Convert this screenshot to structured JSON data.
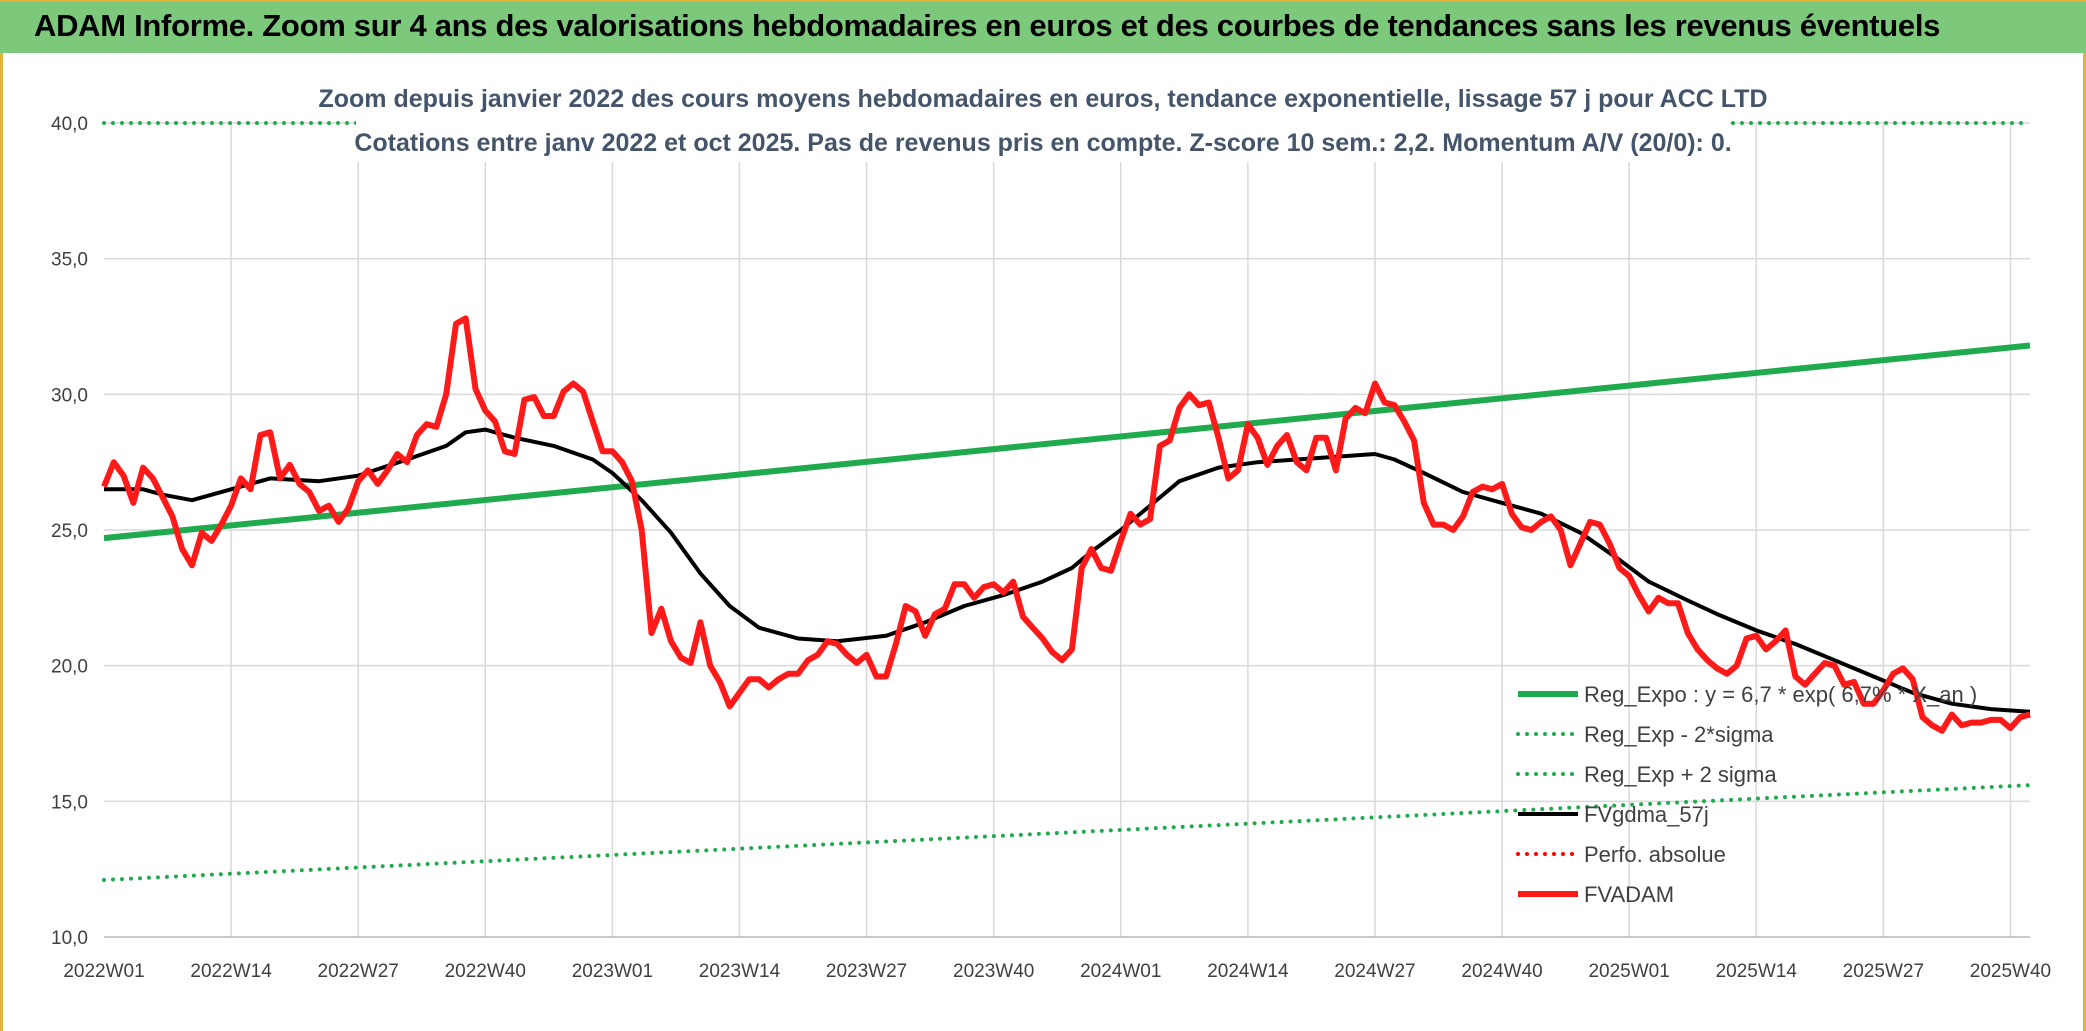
{
  "banner": {
    "title": "ADAM Informe. Zoom sur 4 ans des valorisations hebdomadaires en euros et des courbes de tendances sans les revenus éventuels"
  },
  "chart_data": {
    "type": "line",
    "title_lines": [
      "Zoom depuis janvier 2022 des cours moyens hebdomadaires en euros, tendance exponentielle, lissage 57 j pour ACC LTD",
      "Cotations entre janv 2022 et oct 2025. Pas de revenus pris en compte. Z-score 10 sem.: 2,2. Momentum A/V (20/0): 0."
    ],
    "ylim": [
      10,
      40
    ],
    "y_ticks": [
      10,
      15,
      20,
      25,
      30,
      35,
      40
    ],
    "y_tick_labels": [
      "10,0",
      "15,0",
      "20,0",
      "25,0",
      "30,0",
      "35,0",
      "40,0"
    ],
    "x_range": [
      0,
      197
    ],
    "x_ticks": [
      {
        "x": 0,
        "label": "2022W01"
      },
      {
        "x": 13,
        "label": "2022W14"
      },
      {
        "x": 26,
        "label": "2022W27"
      },
      {
        "x": 39,
        "label": "2022W40"
      },
      {
        "x": 52,
        "label": "2023W01"
      },
      {
        "x": 65,
        "label": "2023W14"
      },
      {
        "x": 78,
        "label": "2023W27"
      },
      {
        "x": 91,
        "label": "2023W40"
      },
      {
        "x": 104,
        "label": "2024W01"
      },
      {
        "x": 117,
        "label": "2024W14"
      },
      {
        "x": 130,
        "label": "2024W27"
      },
      {
        "x": 143,
        "label": "2024W40"
      },
      {
        "x": 156,
        "label": "2025W01"
      },
      {
        "x": 169,
        "label": "2025W14"
      },
      {
        "x": 182,
        "label": "2025W27"
      },
      {
        "x": 195,
        "label": "2025W40"
      }
    ],
    "grid": true,
    "legend_position": "bottom-right",
    "series": [
      {
        "name": "Reg_Expo : y = 6,7 * exp( 6,7% * X_an )",
        "color": "#1faa4d",
        "style": "solid",
        "width": 6,
        "points": [
          [
            0,
            24.7
          ],
          [
            197,
            31.8
          ]
        ]
      },
      {
        "name": "Reg_Exp - 2*sigma",
        "color": "#1faa4d",
        "style": "dotted",
        "width": 4,
        "points": [
          [
            0,
            12.1
          ],
          [
            197,
            15.6
          ]
        ]
      },
      {
        "name": "Reg_Exp + 2 sigma",
        "color": "#1faa4d",
        "style": "dotted",
        "width": 4,
        "points": [
          [
            0,
            40.0
          ],
          [
            197,
            40.0
          ]
        ]
      },
      {
        "name": "FVgdma_57j",
        "color": "#000000",
        "style": "solid",
        "width": 4,
        "points": [
          [
            0,
            26.5
          ],
          [
            4,
            26.5
          ],
          [
            6,
            26.3
          ],
          [
            9,
            26.1
          ],
          [
            13,
            26.5
          ],
          [
            17,
            26.9
          ],
          [
            22,
            26.8
          ],
          [
            26,
            27.0
          ],
          [
            31,
            27.6
          ],
          [
            35,
            28.1
          ],
          [
            37,
            28.6
          ],
          [
            39,
            28.7
          ],
          [
            42,
            28.4
          ],
          [
            46,
            28.1
          ],
          [
            50,
            27.6
          ],
          [
            52,
            27.1
          ],
          [
            55,
            26.1
          ],
          [
            58,
            24.9
          ],
          [
            61,
            23.4
          ],
          [
            64,
            22.2
          ],
          [
            67,
            21.4
          ],
          [
            71,
            21.0
          ],
          [
            75,
            20.9
          ],
          [
            80,
            21.1
          ],
          [
            84,
            21.6
          ],
          [
            88,
            22.2
          ],
          [
            92,
            22.6
          ],
          [
            96,
            23.1
          ],
          [
            99,
            23.6
          ],
          [
            101,
            24.2
          ],
          [
            104,
            25.0
          ],
          [
            107,
            25.9
          ],
          [
            110,
            26.8
          ],
          [
            114,
            27.3
          ],
          [
            118,
            27.5
          ],
          [
            122,
            27.6
          ],
          [
            126,
            27.7
          ],
          [
            130,
            27.8
          ],
          [
            132,
            27.6
          ],
          [
            135,
            27.1
          ],
          [
            139,
            26.4
          ],
          [
            143,
            26.0
          ],
          [
            147,
            25.6
          ],
          [
            151,
            24.9
          ],
          [
            155,
            23.9
          ],
          [
            158,
            23.1
          ],
          [
            162,
            22.4
          ],
          [
            165,
            21.9
          ],
          [
            169,
            21.3
          ],
          [
            173,
            20.8
          ],
          [
            177,
            20.2
          ],
          [
            181,
            19.6
          ],
          [
            185,
            19.0
          ],
          [
            189,
            18.6
          ],
          [
            193,
            18.4
          ],
          [
            197,
            18.3
          ]
        ]
      },
      {
        "name": "Perfo. absolue",
        "color": "#ff0000",
        "style": "dotted",
        "width": 4,
        "points": []
      },
      {
        "name": "FVADAM",
        "color": "#ff1a1a",
        "style": "solid",
        "width": 6,
        "points": [
          [
            0,
            26.6
          ],
          [
            1,
            27.5
          ],
          [
            2,
            27.0
          ],
          [
            3,
            26.0
          ],
          [
            4,
            27.3
          ],
          [
            5,
            26.9
          ],
          [
            6,
            26.2
          ],
          [
            7,
            25.5
          ],
          [
            8,
            24.3
          ],
          [
            9,
            23.7
          ],
          [
            10,
            24.9
          ],
          [
            11,
            24.6
          ],
          [
            12,
            25.2
          ],
          [
            13,
            25.9
          ],
          [
            14,
            26.9
          ],
          [
            15,
            26.5
          ],
          [
            16,
            28.5
          ],
          [
            17,
            28.6
          ],
          [
            18,
            26.9
          ],
          [
            19,
            27.4
          ],
          [
            20,
            26.7
          ],
          [
            21,
            26.4
          ],
          [
            22,
            25.7
          ],
          [
            23,
            25.9
          ],
          [
            24,
            25.3
          ],
          [
            25,
            25.8
          ],
          [
            26,
            26.8
          ],
          [
            27,
            27.2
          ],
          [
            28,
            26.7
          ],
          [
            29,
            27.2
          ],
          [
            30,
            27.8
          ],
          [
            31,
            27.5
          ],
          [
            32,
            28.5
          ],
          [
            33,
            28.9
          ],
          [
            34,
            28.8
          ],
          [
            35,
            30.0
          ],
          [
            36,
            32.6
          ],
          [
            37,
            32.8
          ],
          [
            38,
            30.2
          ],
          [
            39,
            29.4
          ],
          [
            40,
            29.0
          ],
          [
            41,
            27.9
          ],
          [
            42,
            27.8
          ],
          [
            43,
            29.8
          ],
          [
            44,
            29.9
          ],
          [
            45,
            29.2
          ],
          [
            46,
            29.2
          ],
          [
            47,
            30.1
          ],
          [
            48,
            30.4
          ],
          [
            49,
            30.1
          ],
          [
            50,
            29.0
          ],
          [
            51,
            27.9
          ],
          [
            52,
            27.9
          ],
          [
            53,
            27.5
          ],
          [
            54,
            26.8
          ],
          [
            55,
            25.0
          ],
          [
            56,
            21.2
          ],
          [
            57,
            22.1
          ],
          [
            58,
            20.9
          ],
          [
            59,
            20.3
          ],
          [
            60,
            20.1
          ],
          [
            61,
            21.6
          ],
          [
            62,
            20.0
          ],
          [
            63,
            19.4
          ],
          [
            64,
            18.5
          ],
          [
            65,
            19.0
          ],
          [
            66,
            19.5
          ],
          [
            67,
            19.5
          ],
          [
            68,
            19.2
          ],
          [
            69,
            19.5
          ],
          [
            70,
            19.7
          ],
          [
            71,
            19.7
          ],
          [
            72,
            20.2
          ],
          [
            73,
            20.4
          ],
          [
            74,
            20.9
          ],
          [
            75,
            20.8
          ],
          [
            76,
            20.4
          ],
          [
            77,
            20.1
          ],
          [
            78,
            20.4
          ],
          [
            79,
            19.6
          ],
          [
            80,
            19.6
          ],
          [
            81,
            20.8
          ],
          [
            82,
            22.2
          ],
          [
            83,
            22.0
          ],
          [
            84,
            21.1
          ],
          [
            85,
            21.9
          ],
          [
            86,
            22.1
          ],
          [
            87,
            23.0
          ],
          [
            88,
            23.0
          ],
          [
            89,
            22.5
          ],
          [
            90,
            22.9
          ],
          [
            91,
            23.0
          ],
          [
            92,
            22.7
          ],
          [
            93,
            23.1
          ],
          [
            94,
            21.8
          ],
          [
            95,
            21.4
          ],
          [
            96,
            21.0
          ],
          [
            97,
            20.5
          ],
          [
            98,
            20.2
          ],
          [
            99,
            20.6
          ],
          [
            100,
            23.6
          ],
          [
            101,
            24.3
          ],
          [
            102,
            23.6
          ],
          [
            103,
            23.5
          ],
          [
            104,
            24.6
          ],
          [
            105,
            25.6
          ],
          [
            106,
            25.2
          ],
          [
            107,
            25.4
          ],
          [
            108,
            28.1
          ],
          [
            109,
            28.3
          ],
          [
            110,
            29.5
          ],
          [
            111,
            30.0
          ],
          [
            112,
            29.6
          ],
          [
            113,
            29.7
          ],
          [
            114,
            28.4
          ],
          [
            115,
            26.9
          ],
          [
            116,
            27.2
          ],
          [
            117,
            28.9
          ],
          [
            118,
            28.4
          ],
          [
            119,
            27.4
          ],
          [
            120,
            28.1
          ],
          [
            121,
            28.5
          ],
          [
            122,
            27.5
          ],
          [
            123,
            27.2
          ],
          [
            124,
            28.4
          ],
          [
            125,
            28.4
          ],
          [
            126,
            27.2
          ],
          [
            127,
            29.1
          ],
          [
            128,
            29.5
          ],
          [
            129,
            29.3
          ],
          [
            130,
            30.4
          ],
          [
            131,
            29.7
          ],
          [
            132,
            29.6
          ],
          [
            133,
            29.0
          ],
          [
            134,
            28.3
          ],
          [
            135,
            26.0
          ],
          [
            136,
            25.2
          ],
          [
            137,
            25.2
          ],
          [
            138,
            25.0
          ],
          [
            139,
            25.5
          ],
          [
            140,
            26.4
          ],
          [
            141,
            26.6
          ],
          [
            142,
            26.5
          ],
          [
            143,
            26.7
          ],
          [
            144,
            25.6
          ],
          [
            145,
            25.1
          ],
          [
            146,
            25.0
          ],
          [
            147,
            25.3
          ],
          [
            148,
            25.5
          ],
          [
            149,
            25.0
          ],
          [
            150,
            23.7
          ],
          [
            151,
            24.5
          ],
          [
            152,
            25.3
          ],
          [
            153,
            25.2
          ],
          [
            154,
            24.5
          ],
          [
            155,
            23.6
          ],
          [
            156,
            23.3
          ],
          [
            157,
            22.6
          ],
          [
            158,
            22.0
          ],
          [
            159,
            22.5
          ],
          [
            160,
            22.3
          ],
          [
            161,
            22.3
          ],
          [
            162,
            21.2
          ],
          [
            163,
            20.6
          ],
          [
            164,
            20.2
          ],
          [
            165,
            19.9
          ],
          [
            166,
            19.7
          ],
          [
            167,
            20.0
          ],
          [
            168,
            21.0
          ],
          [
            169,
            21.1
          ],
          [
            170,
            20.6
          ],
          [
            171,
            20.9
          ],
          [
            172,
            21.3
          ],
          [
            173,
            19.6
          ],
          [
            174,
            19.3
          ],
          [
            175,
            19.7
          ],
          [
            176,
            20.1
          ],
          [
            177,
            20.0
          ],
          [
            178,
            19.3
          ],
          [
            179,
            19.4
          ],
          [
            180,
            18.6
          ],
          [
            181,
            18.6
          ],
          [
            182,
            19.1
          ],
          [
            183,
            19.7
          ],
          [
            184,
            19.9
          ],
          [
            185,
            19.5
          ],
          [
            186,
            18.1
          ],
          [
            187,
            17.8
          ],
          [
            188,
            17.6
          ],
          [
            189,
            18.2
          ],
          [
            190,
            17.8
          ],
          [
            191,
            17.9
          ],
          [
            192,
            17.9
          ],
          [
            193,
            18.0
          ],
          [
            194,
            18.0
          ],
          [
            195,
            17.7
          ],
          [
            196,
            18.1
          ],
          [
            197,
            18.2
          ]
        ]
      }
    ],
    "legend_order": [
      0,
      1,
      2,
      3,
      4,
      5
    ]
  }
}
